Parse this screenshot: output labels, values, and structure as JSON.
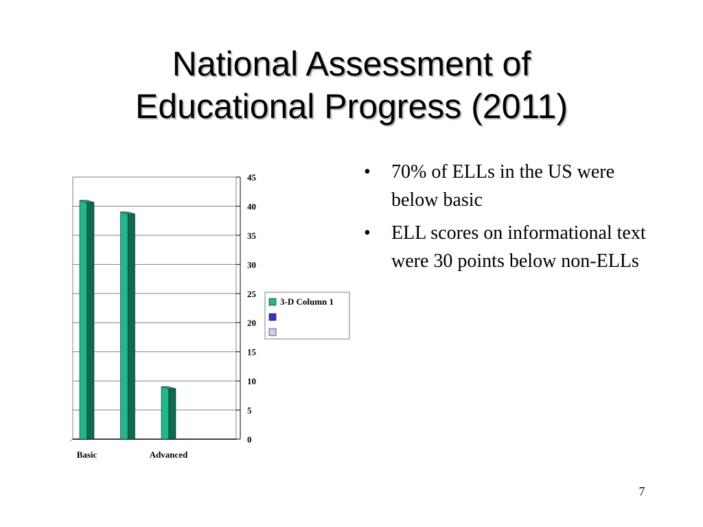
{
  "slide": {
    "title_lines": [
      "National Assessment of",
      "Educational Progress (2011)"
    ],
    "bullets": [
      "70% of ELLs in the US were below basic",
      "ELL scores on informational text were 30 points below non-ELLs"
    ],
    "page_number": "7"
  },
  "chart_data": {
    "type": "bar",
    "style": "3-D column",
    "categories": [
      "Basic",
      "",
      "Advanced",
      ""
    ],
    "series": [
      {
        "name": "3-D Column 1",
        "values": [
          41,
          39,
          9,
          0
        ],
        "color": "#1fb88c",
        "side_color": "#0d6b50"
      },
      {
        "name": "",
        "values": [
          0,
          0,
          0,
          0
        ],
        "color": "#3333cc"
      },
      {
        "name": "",
        "values": [
          0,
          0,
          0,
          0
        ],
        "color": "#ccccff"
      }
    ],
    "ylim": [
      0,
      45
    ],
    "yticks": [
      "0",
      "5",
      "10",
      "15",
      "20",
      "25",
      "30",
      "35",
      "40",
      "45"
    ],
    "y_axis_side": "right",
    "grid": true,
    "legend_position": "right",
    "title": "",
    "xlabel": "",
    "ylabel": ""
  }
}
